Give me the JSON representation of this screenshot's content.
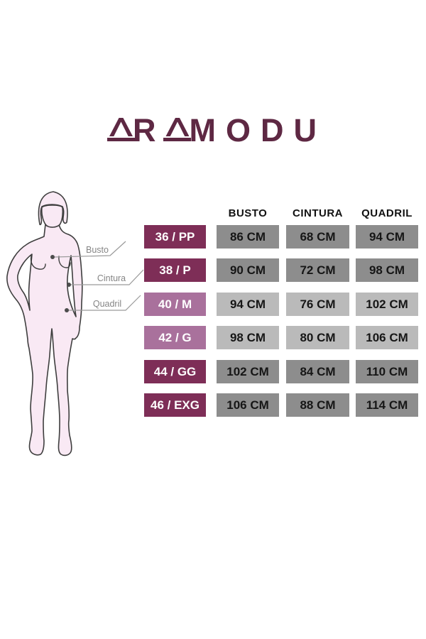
{
  "brand": {
    "name": "ARAMODU",
    "color": "#5e2843"
  },
  "figure": {
    "labels": [
      {
        "id": "busto",
        "text": "Busto"
      },
      {
        "id": "cintura",
        "text": "Cintura"
      },
      {
        "id": "quadril",
        "text": "Quadril"
      }
    ]
  },
  "size_chart": {
    "columns": [
      "BUSTO",
      "CINTURA",
      "QUADRIL"
    ],
    "rows": [
      {
        "size": "36 / PP",
        "busto": "86 CM",
        "cintura": "68 CM",
        "quadril": "94 CM",
        "tone": "dark"
      },
      {
        "size": "38 / P",
        "busto": "90 CM",
        "cintura": "72 CM",
        "quadril": "98 CM",
        "tone": "dark"
      },
      {
        "size": "40 / M",
        "busto": "94 CM",
        "cintura": "76 CM",
        "quadril": "102 CM",
        "tone": "light"
      },
      {
        "size": "42 / G",
        "busto": "98 CM",
        "cintura": "80 CM",
        "quadril": "106 CM",
        "tone": "light"
      },
      {
        "size": "44 / GG",
        "busto": "102 CM",
        "cintura": "84 CM",
        "quadril": "110 CM",
        "tone": "dark"
      },
      {
        "size": "46 / EXG",
        "busto": "106 CM",
        "cintura": "88 CM",
        "quadril": "114 CM",
        "tone": "dark"
      }
    ],
    "colors": {
      "size_box_dark": "#7e2e57",
      "size_box_light": "#a9719c",
      "value_box_dark": "#8d8d8d",
      "value_box_light": "#bababa",
      "size_text": "#ffffff",
      "value_text": "#161616",
      "header_text": "#111111"
    }
  },
  "chart_data": {
    "type": "table",
    "title": "ARAMODU",
    "columns": [
      "BUSTO",
      "CINTURA",
      "QUADRIL"
    ],
    "row_labels": [
      "36 / PP",
      "38 / P",
      "40 / M",
      "42 / G",
      "44 / GG",
      "46 / EXG"
    ],
    "values_cm": [
      [
        86,
        68,
        94
      ],
      [
        90,
        72,
        98
      ],
      [
        94,
        76,
        102
      ],
      [
        98,
        80,
        106
      ],
      [
        102,
        84,
        110
      ],
      [
        106,
        88,
        114
      ]
    ],
    "figure_labels": [
      "Busto",
      "Cintura",
      "Quadril"
    ]
  }
}
